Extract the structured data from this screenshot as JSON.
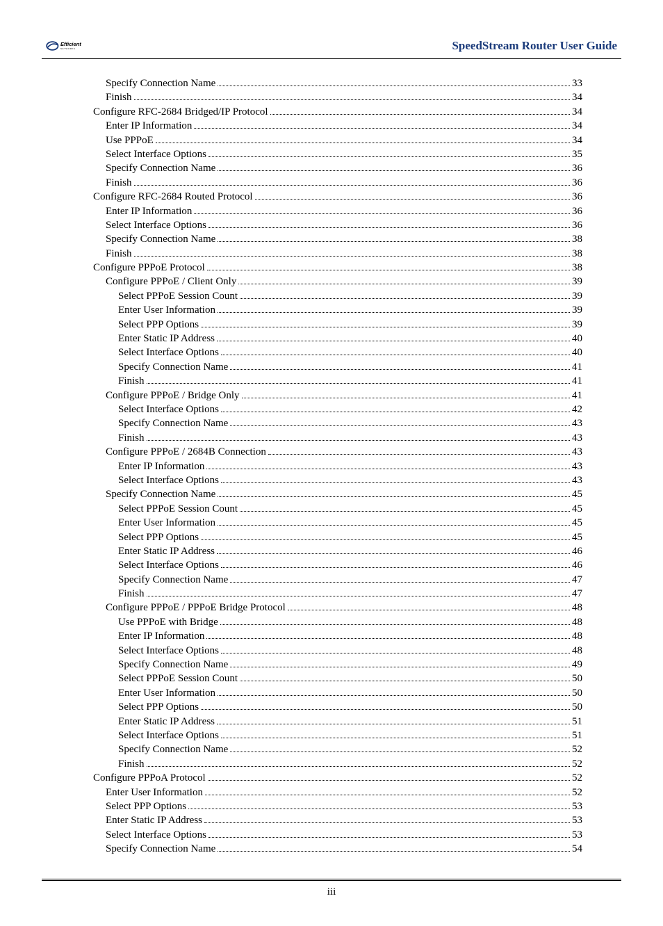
{
  "header": {
    "brand_top": "Efficient",
    "brand_sub": "NETWORKS",
    "doc_title": "SpeedStream Router User Guide",
    "title_color": "#1a3a7a",
    "logo_stroke": "#1a3a7a"
  },
  "footer": {
    "page_label": "iii"
  },
  "toc": {
    "entries": [
      {
        "level": 2,
        "text": "Specify Connection Name",
        "page": "33"
      },
      {
        "level": 2,
        "text": "Finish",
        "page": "34"
      },
      {
        "level": 1,
        "text": "Configure RFC-2684 Bridged/IP Protocol",
        "page": "34"
      },
      {
        "level": 2,
        "text": "Enter IP Information",
        "page": "34"
      },
      {
        "level": 2,
        "text": "Use PPPoE",
        "page": "34"
      },
      {
        "level": 2,
        "text": "Select Interface Options",
        "page": "35"
      },
      {
        "level": 2,
        "text": "Specify Connection Name",
        "page": "36"
      },
      {
        "level": 2,
        "text": "Finish",
        "page": "36"
      },
      {
        "level": 1,
        "text": "Configure RFC-2684 Routed Protocol",
        "page": "36"
      },
      {
        "level": 2,
        "text": "Enter IP Information",
        "page": "36"
      },
      {
        "level": 2,
        "text": "Select Interface Options",
        "page": "36"
      },
      {
        "level": 2,
        "text": "Specify Connection Name",
        "page": "38"
      },
      {
        "level": 2,
        "text": "Finish",
        "page": "38"
      },
      {
        "level": 1,
        "text": "Configure PPPoE Protocol",
        "page": "38"
      },
      {
        "level": 2,
        "text": "Configure PPPoE / Client Only",
        "page": "39"
      },
      {
        "level": 3,
        "text": "Select PPPoE Session Count",
        "page": "39"
      },
      {
        "level": 3,
        "text": "Enter User Information",
        "page": "39"
      },
      {
        "level": 3,
        "text": "Select PPP Options",
        "page": "39"
      },
      {
        "level": 3,
        "text": "Enter Static IP Address",
        "page": "40"
      },
      {
        "level": 3,
        "text": "Select Interface Options",
        "page": "40"
      },
      {
        "level": 3,
        "text": "Specify Connection Name",
        "page": "41"
      },
      {
        "level": 3,
        "text": "Finish",
        "page": "41"
      },
      {
        "level": 2,
        "text": "Configure PPPoE / Bridge Only",
        "page": "41"
      },
      {
        "level": 3,
        "text": "Select Interface Options",
        "page": "42"
      },
      {
        "level": 3,
        "text": "Specify Connection Name",
        "page": "43"
      },
      {
        "level": 3,
        "text": "Finish",
        "page": "43"
      },
      {
        "level": 2,
        "text": "Configure PPPoE / 2684B Connection",
        "page": "43"
      },
      {
        "level": 3,
        "text": "Enter IP Information",
        "page": "43"
      },
      {
        "level": 3,
        "text": "Select Interface Options",
        "page": "43"
      },
      {
        "level": 2,
        "text": "Specify Connection Name",
        "page": "45"
      },
      {
        "level": 3,
        "text": "Select PPPoE Session Count",
        "page": "45"
      },
      {
        "level": 3,
        "text": "Enter User Information",
        "page": "45"
      },
      {
        "level": 3,
        "text": "Select PPP Options",
        "page": "45"
      },
      {
        "level": 3,
        "text": "Enter Static IP Address",
        "page": "46"
      },
      {
        "level": 3,
        "text": "Select Interface Options",
        "page": "46"
      },
      {
        "level": 3,
        "text": "Specify Connection Name",
        "page": "47"
      },
      {
        "level": 3,
        "text": "Finish",
        "page": "47"
      },
      {
        "level": 2,
        "text": "Configure PPPoE / PPPoE Bridge Protocol",
        "page": "48"
      },
      {
        "level": 3,
        "text": "Use PPPoE with Bridge",
        "page": "48"
      },
      {
        "level": 3,
        "text": "Enter IP Information",
        "page": "48"
      },
      {
        "level": 3,
        "text": "Select Interface Options",
        "page": "48"
      },
      {
        "level": 3,
        "text": "Specify Connection Name",
        "page": "49"
      },
      {
        "level": 3,
        "text": "Select PPPoE Session Count",
        "page": "50"
      },
      {
        "level": 3,
        "text": "Enter User Information",
        "page": "50"
      },
      {
        "level": 3,
        "text": "Select PPP Options",
        "page": "50"
      },
      {
        "level": 3,
        "text": "Enter Static IP Address",
        "page": "51"
      },
      {
        "level": 3,
        "text": "Select Interface Options",
        "page": "51"
      },
      {
        "level": 3,
        "text": "Specify Connection Name",
        "page": "52"
      },
      {
        "level": 3,
        "text": "Finish",
        "page": "52"
      },
      {
        "level": 1,
        "text": "Configure PPPoA Protocol",
        "page": "52"
      },
      {
        "level": 2,
        "text": "Enter User Information",
        "page": "52"
      },
      {
        "level": 2,
        "text": "Select PPP Options",
        "page": "53"
      },
      {
        "level": 2,
        "text": "Enter Static IP Address",
        "page": "53"
      },
      {
        "level": 2,
        "text": "Select Interface Options",
        "page": "53"
      },
      {
        "level": 2,
        "text": "Specify Connection Name",
        "page": "54"
      }
    ]
  }
}
